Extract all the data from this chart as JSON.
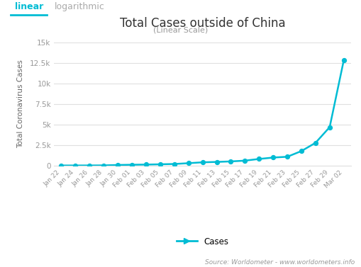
{
  "title": "Total Cases outside of China",
  "subtitle": "(Linear Scale)",
  "ylabel": "Total Coronavirus Cases",
  "tab_linear": "linear",
  "tab_logarithmic": "logarithmic",
  "legend_label": "Cases",
  "source_text": "Source: Worldometer - www.worldometers.info",
  "line_color": "#00bcd4",
  "marker_color": "#00bcd4",
  "background_color": "#ffffff",
  "grid_color": "#e0e0e0",
  "title_color": "#333333",
  "ylabel_color": "#666666",
  "tick_color": "#999999",
  "ylim": [
    0,
    15000
  ],
  "yticks": [
    0,
    2500,
    5000,
    7500,
    10000,
    12500,
    15000
  ],
  "ytick_labels": [
    "0",
    "2.5k",
    "5k",
    "7.5k",
    "10k",
    "12.5k",
    "15k"
  ],
  "dates": [
    "Jan 22",
    "Jan 24",
    "Jan 26",
    "Jan 28",
    "Jan 30",
    "Feb 01",
    "Feb 03",
    "Feb 05",
    "Feb 07",
    "Feb 09",
    "Feb 11",
    "Feb 13",
    "Feb 15",
    "Feb 17",
    "Feb 19",
    "Feb 21",
    "Feb 23",
    "Feb 25",
    "Feb 27",
    "Feb 29",
    "Mar 02"
  ],
  "values": [
    6,
    7,
    11,
    19,
    68,
    98,
    118,
    153,
    191,
    288,
    395,
    441,
    505,
    598,
    804,
    976,
    1073,
    1769,
    2777,
    4691,
    12872
  ]
}
